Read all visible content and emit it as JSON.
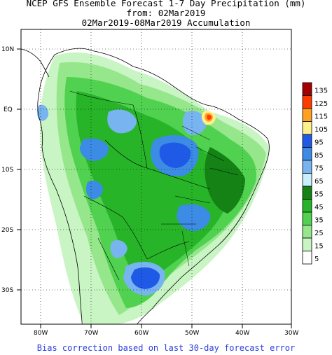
{
  "title": {
    "line1": "NCEP GFS Ensemble Forecast 1-7 Day Precipitation (mm)",
    "line2": "from: 02Mar2019",
    "line3": "02Mar2019-08Mar2019 Accumulation"
  },
  "latitude_labels": [
    "10N",
    "EQ",
    "10S",
    "20S",
    "30S"
  ],
  "longitude_labels": [
    "80W",
    "70W",
    "60W",
    "50W",
    "40W",
    "30W"
  ],
  "legend": {
    "levels": [
      "135",
      "125",
      "115",
      "105",
      "95",
      "85",
      "75",
      "65",
      "55",
      "45",
      "35",
      "25",
      "15",
      "5"
    ],
    "colors": [
      "#a50000",
      "#ff3c00",
      "#ffa01e",
      "#fff08c",
      "#1e5ae6",
      "#3c8ce6",
      "#78b4f0",
      "#c8f0ff",
      "#148214",
      "#28b428",
      "#50d250",
      "#96e68c",
      "#c8f5c3",
      "#ffffff"
    ]
  },
  "footer": "Bias correction based on last 30-day forecast error"
}
